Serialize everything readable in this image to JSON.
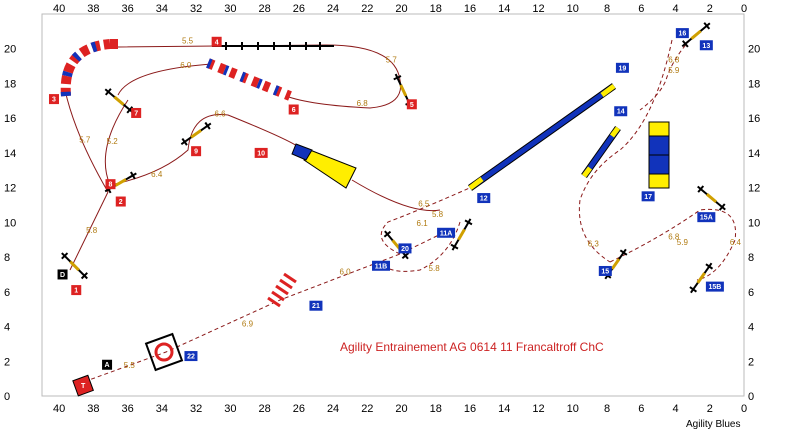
{
  "title": "Agility Entrainement AG 0614 11 Francaltroff ChC",
  "credit": "Agility Blues",
  "axes": {
    "x_ticks": [
      40,
      38,
      36,
      34,
      32,
      30,
      28,
      26,
      24,
      22,
      20,
      18,
      16,
      14,
      12,
      10,
      8,
      6,
      4,
      2,
      0
    ],
    "y_ticks": [
      0,
      2,
      4,
      6,
      8,
      10,
      12,
      14,
      16,
      18,
      20
    ],
    "x_range": [
      41,
      0
    ],
    "y_range": [
      0,
      22
    ]
  },
  "colors": {
    "path": "#8b1a1a",
    "distance": "#b07a10",
    "red_number": "#dd2222",
    "blue_number": "#1133bb",
    "black_number": "#000000",
    "yellow": "#ffee00",
    "blue_contact": "#1133bb",
    "title": "#cc2222"
  },
  "numbers": [
    {
      "label": "T",
      "x": 38.6,
      "y": 0.6,
      "color": "red"
    },
    {
      "label": "A",
      "x": 37.2,
      "y": 1.8,
      "color": "black"
    },
    {
      "label": "D",
      "x": 39.8,
      "y": 7.0,
      "color": "black"
    },
    {
      "label": "1",
      "x": 39.0,
      "y": 6.1,
      "color": "red"
    },
    {
      "label": "2",
      "x": 36.4,
      "y": 11.2,
      "color": "red"
    },
    {
      "label": "3",
      "x": 40.3,
      "y": 17.1,
      "color": "red"
    },
    {
      "label": "4",
      "x": 30.8,
      "y": 20.4,
      "color": "red"
    },
    {
      "label": "5",
      "x": 19.4,
      "y": 16.8,
      "color": "red"
    },
    {
      "label": "6",
      "x": 26.3,
      "y": 16.5,
      "color": "red"
    },
    {
      "label": "7",
      "x": 35.5,
      "y": 16.3,
      "color": "red"
    },
    {
      "label": "8",
      "x": 37.0,
      "y": 12.2,
      "color": "red"
    },
    {
      "label": "9",
      "x": 32.0,
      "y": 14.1,
      "color": "red"
    },
    {
      "label": "10",
      "x": 28.2,
      "y": 14.0,
      "color": "red"
    },
    {
      "label": "11A",
      "x": 17.4,
      "y": 9.4,
      "color": "blue"
    },
    {
      "label": "11B",
      "x": 21.2,
      "y": 7.5,
      "color": "blue"
    },
    {
      "label": "12",
      "x": 15.2,
      "y": 11.4,
      "color": "blue"
    },
    {
      "label": "13",
      "x": 2.2,
      "y": 20.2,
      "color": "blue"
    },
    {
      "label": "14",
      "x": 7.2,
      "y": 16.4,
      "color": "blue"
    },
    {
      "label": "15",
      "x": 8.1,
      "y": 7.2,
      "color": "blue"
    },
    {
      "label": "15A",
      "x": 2.2,
      "y": 10.3,
      "color": "blue"
    },
    {
      "label": "15B",
      "x": 1.7,
      "y": 6.3,
      "color": "blue"
    },
    {
      "label": "16",
      "x": 3.6,
      "y": 20.9,
      "color": "blue"
    },
    {
      "label": "17",
      "x": 5.6,
      "y": 11.5,
      "color": "blue"
    },
    {
      "label": "19",
      "x": 7.1,
      "y": 18.9,
      "color": "blue"
    },
    {
      "label": "20",
      "x": 19.8,
      "y": 8.5,
      "color": "blue"
    },
    {
      "label": "21",
      "x": 25.0,
      "y": 5.2,
      "color": "blue"
    },
    {
      "label": "22",
      "x": 32.3,
      "y": 2.3,
      "color": "blue"
    }
  ],
  "jumps": [
    {
      "name": "jump-1",
      "x": 39.1,
      "y": 7.5,
      "angle": 45
    },
    {
      "name": "jump-2",
      "x": 36.4,
      "y": 12.3,
      "angle": -30
    },
    {
      "name": "jump-7",
      "x": 36.5,
      "y": 17.0,
      "angle": 40
    },
    {
      "name": "jump-9",
      "x": 32.0,
      "y": 15.1,
      "angle": -35
    },
    {
      "name": "jump-5",
      "x": 19.9,
      "y": 17.6,
      "angle": 65
    },
    {
      "name": "jump-11A",
      "x": 16.5,
      "y": 9.3,
      "angle": -60
    },
    {
      "name": "jump-11B",
      "x": 20.3,
      "y": 8.7,
      "angle": 50
    },
    {
      "name": "jump-13",
      "x": 2.8,
      "y": 20.8,
      "angle": -40
    },
    {
      "name": "jump-15",
      "x": 7.5,
      "y": 7.6,
      "angle": -55
    },
    {
      "name": "jump-15A",
      "x": 1.9,
      "y": 11.4,
      "angle": 40
    },
    {
      "name": "jump-15B",
      "x": 2.5,
      "y": 6.8,
      "angle": -55
    }
  ],
  "distances": [
    {
      "label": "5.5",
      "x": 35.9,
      "y": 1.6
    },
    {
      "label": "6.9",
      "x": 29.0,
      "y": 4.0
    },
    {
      "label": "6.0",
      "x": 23.3,
      "y": 7.0
    },
    {
      "label": "5.8",
      "x": 38.1,
      "y": 9.4
    },
    {
      "label": "6.4",
      "x": 34.3,
      "y": 12.6
    },
    {
      "label": "5.2",
      "x": 36.9,
      "y": 14.5
    },
    {
      "label": "5.7",
      "x": 38.5,
      "y": 14.6
    },
    {
      "label": "5.5",
      "x": 32.5,
      "y": 20.3
    },
    {
      "label": "6.0",
      "x": 32.6,
      "y": 18.9
    },
    {
      "label": "5.7",
      "x": 20.6,
      "y": 19.2
    },
    {
      "label": "6.8",
      "x": 22.3,
      "y": 16.7
    },
    {
      "label": "6.6",
      "x": 30.6,
      "y": 16.1
    },
    {
      "label": "6.5",
      "x": 18.7,
      "y": 10.9
    },
    {
      "label": "5.8",
      "x": 17.9,
      "y": 10.3
    },
    {
      "label": "6.1",
      "x": 18.8,
      "y": 9.8
    },
    {
      "label": "5.8",
      "x": 18.1,
      "y": 7.2
    },
    {
      "label": "6.8",
      "x": 4.1,
      "y": 19.2
    },
    {
      "label": "5.9",
      "x": 4.1,
      "y": 18.6
    },
    {
      "label": "6.3",
      "x": 8.8,
      "y": 8.6
    },
    {
      "label": "6.8",
      "x": 4.1,
      "y": 9.0
    },
    {
      "label": "5.9",
      "x": 3.6,
      "y": 8.7
    },
    {
      "label": "6.4",
      "x": 0.5,
      "y": 8.7
    }
  ],
  "course_path": [
    [
      38.6,
      0.8
    ],
    [
      34.0,
      2.5
    ],
    [
      27.0,
      5.3
    ],
    [
      21.0,
      7.6
    ],
    [
      17.3,
      9.6
    ],
    [
      15.3,
      11.4
    ]
  ]
}
